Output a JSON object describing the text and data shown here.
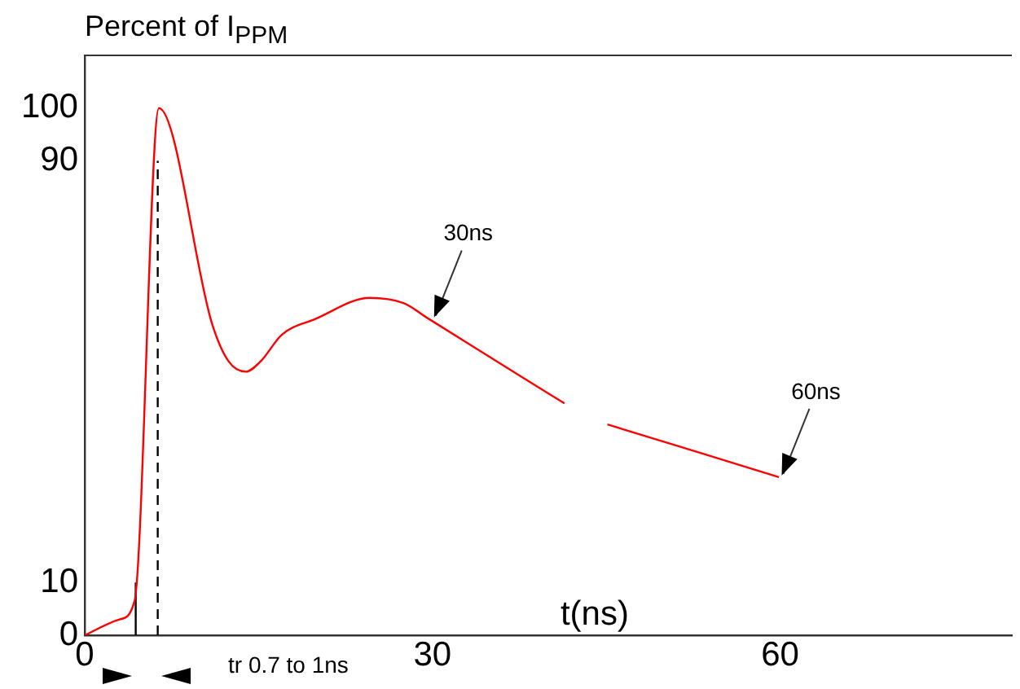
{
  "chart_data": {
    "type": "line",
    "title": "Percent of I$_{PPM}$",
    "xlabel": "t(ns)",
    "xlim": [
      0,
      80
    ],
    "xticks": [
      0,
      30,
      60
    ],
    "ylim": [
      0,
      110
    ],
    "yticks": [
      0,
      10,
      90,
      100
    ],
    "grid": false,
    "legend": false,
    "marker": "none",
    "series": [
      {
        "color": "#ff0000",
        "line_style": "solid",
        "x": [
          0,
          3,
          4.3,
          6.4,
          11,
          12.4,
          13.9,
          15.2,
          17,
          19.9,
          24.6,
          27.5,
          29.7,
          37.7,
          41.4,
          43,
          45.1,
          59.9
        ],
        "values": [
          0,
          3,
          6.5,
          100,
          59,
          52,
          50,
          52,
          57,
          60,
          64,
          63,
          60,
          49,
          44,
          null,
          40,
          30
        ]
      },
      {
        "color": "#000000",
        "line_style": "solid",
        "x": [
          4.4,
          4.4
        ],
        "values": [
          0,
          10
        ]
      },
      {
        "color": "#000000",
        "line_style": "dashed",
        "x": [
          6.3,
          6.3
        ],
        "values": [
          0,
          90
        ]
      }
    ],
    "annotations": [
      {
        "text": "30ns",
        "x": 30,
        "y": 60
      },
      {
        "text": "60ns",
        "x": 60,
        "y": 30
      },
      "tr 0.7 to 1ns"
    ]
  }
}
